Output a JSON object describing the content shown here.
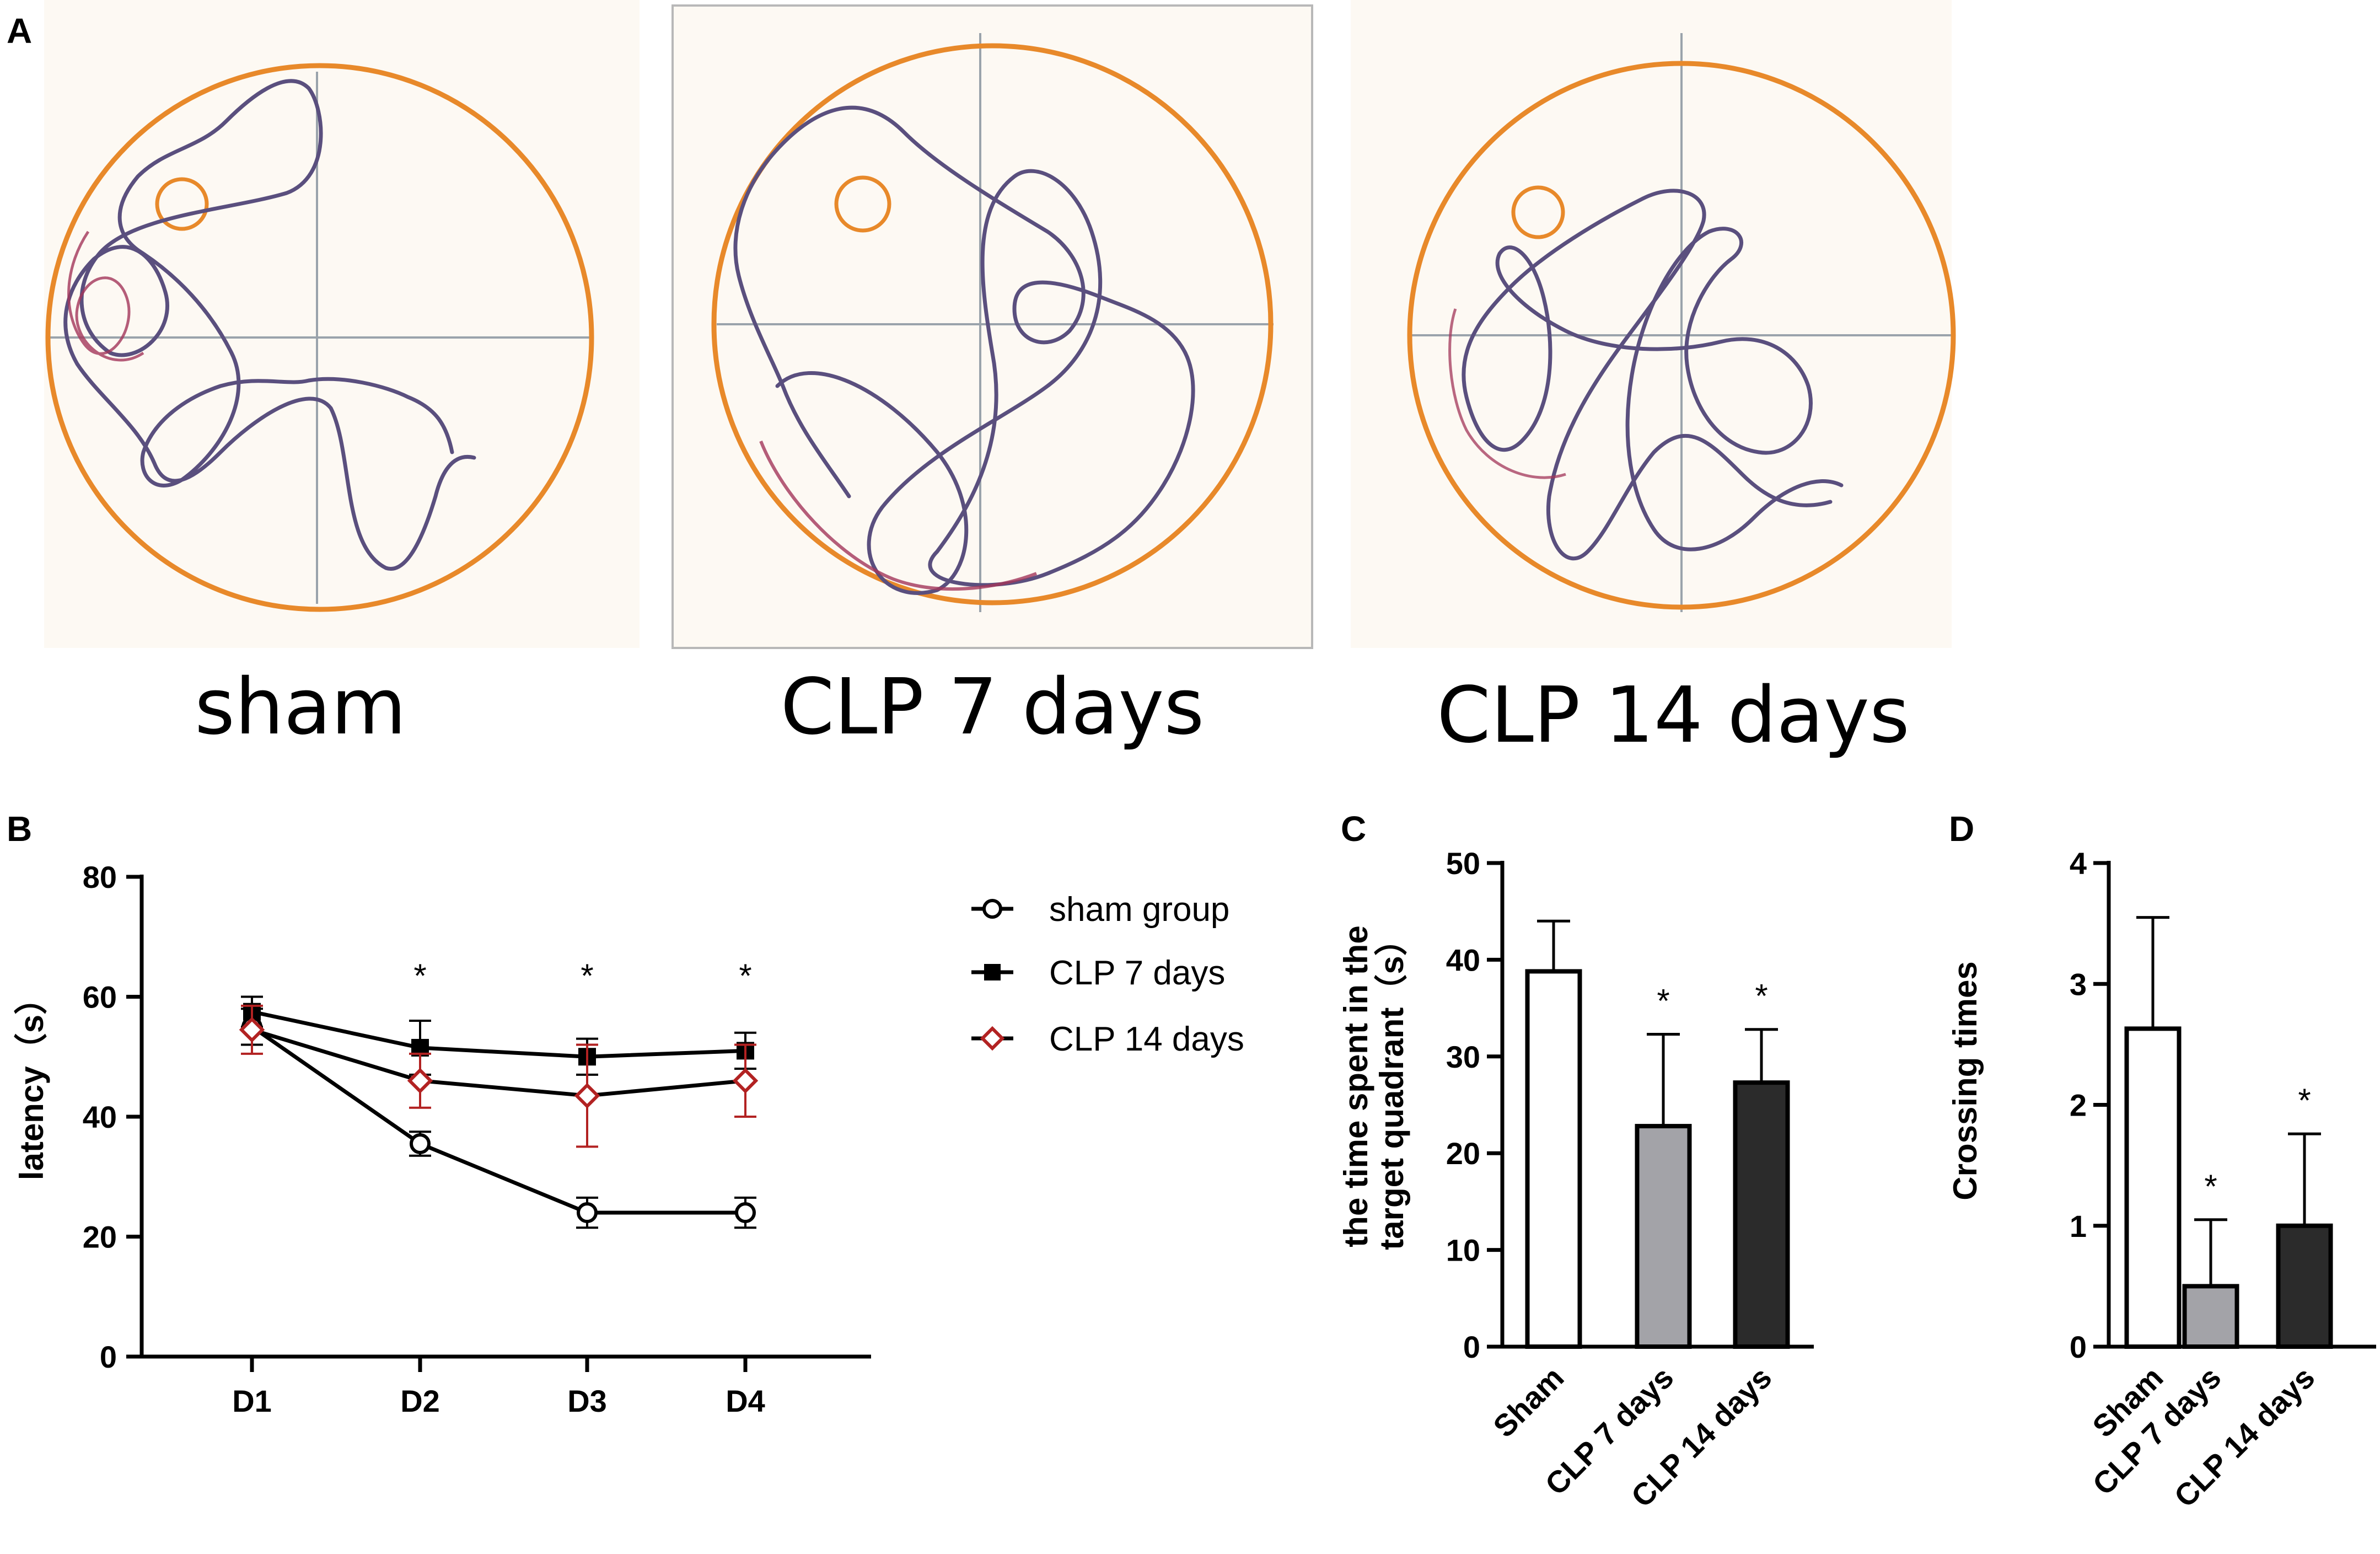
{
  "panels": {
    "A": "A",
    "B": "B",
    "C": "C",
    "D": "D"
  },
  "panel_a": {
    "captions": [
      "sham",
      "CLP 7 days",
      "CLP 14 days"
    ],
    "colors": {
      "pool_edge": "#e8892a",
      "track": "#5a4f7e",
      "track_accent": "#a2365a",
      "platform": "#e8892a",
      "background": "#fdf9f3",
      "crosshair": "#9aa3ab"
    }
  },
  "chart_data": [
    {
      "panel": "B",
      "type": "line",
      "categories": [
        "D1",
        "D2",
        "D3",
        "D4"
      ],
      "ylabel": "latency（s）",
      "ylim": [
        0,
        80
      ],
      "yticks": [
        "0",
        "20",
        "40",
        "60",
        "80"
      ],
      "significance": [
        "",
        "*",
        "*",
        "*"
      ],
      "series": [
        {
          "name": "sham group",
          "marker": "open-circle",
          "color": "#000000",
          "values": [
            55,
            35.5,
            24,
            24
          ],
          "errors": [
            3,
            2,
            2.5,
            2.5
          ]
        },
        {
          "name": "CLP 7 days",
          "marker": "filled-square",
          "color": "#000000",
          "values": [
            57.5,
            51.5,
            50,
            51
          ],
          "errors": [
            2.5,
            4.5,
            3,
            3
          ]
        },
        {
          "name": "CLP 14 days",
          "marker": "open-diamond",
          "color": "#b22222",
          "values": [
            54.5,
            46,
            43.5,
            46
          ],
          "errors": [
            4,
            4.5,
            8.5,
            6
          ]
        }
      ]
    },
    {
      "panel": "C",
      "type": "bar",
      "categories": [
        "Sham",
        "CLP 7 days",
        "CLP 14 days"
      ],
      "values": [
        38.8,
        22.8,
        27.3
      ],
      "errors": [
        5.2,
        9.5,
        5.5
      ],
      "significance": [
        "",
        "*",
        "*"
      ],
      "bar_colors": [
        "#ffffff",
        "#a3a3a8",
        "#2b2b2b"
      ],
      "ylabel_line1": "the time spent in the",
      "ylabel_line2": "target quadrant（s）",
      "ylim": [
        0,
        50
      ],
      "yticks": [
        "0",
        "10",
        "20",
        "30",
        "40",
        "50"
      ]
    },
    {
      "panel": "D",
      "type": "bar",
      "categories": [
        "Sham",
        "CLP 7 days",
        "CLP 14 days"
      ],
      "values": [
        2.63,
        0.5,
        1.0
      ],
      "errors": [
        0.92,
        0.55,
        0.76
      ],
      "significance": [
        "",
        "*",
        "*"
      ],
      "bar_colors": [
        "#ffffff",
        "#a3a3a8",
        "#2b2b2b"
      ],
      "ylabel": "Crossing times",
      "ylim": [
        0,
        4
      ],
      "yticks": [
        "0",
        "1",
        "2",
        "3",
        "4"
      ]
    }
  ]
}
